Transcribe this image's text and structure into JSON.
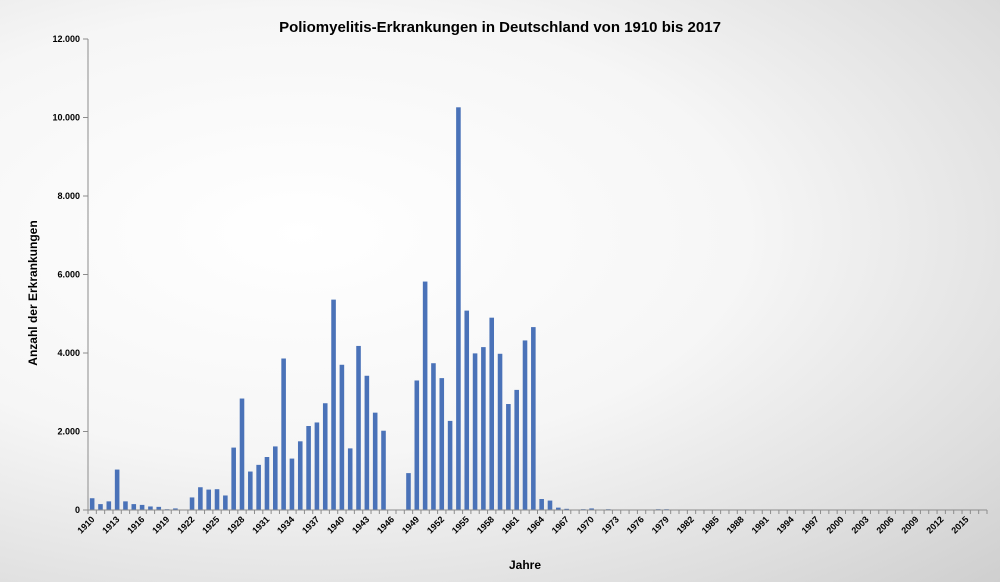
{
  "chart_data": {
    "type": "bar",
    "title": "Poliomyelitis-Erkrankungen in Deutschland von 1910 bis 2017",
    "xlabel": "Jahre",
    "ylabel": "Anzahl der Erkrankungen",
    "ylim": [
      0,
      12000
    ],
    "yticks": [
      {
        "value": 0,
        "label": "0"
      },
      {
        "value": 2000,
        "label": "2.000"
      },
      {
        "value": 4000,
        "label": "4.000"
      },
      {
        "value": 6000,
        "label": "6.000"
      },
      {
        "value": 8000,
        "label": "8.000"
      },
      {
        "value": 10000,
        "label": "10.000"
      },
      {
        "value": 12000,
        "label": "12.000"
      }
    ],
    "xticklabels": [
      "1910",
      "1913",
      "1916",
      "1919",
      "1922",
      "1925",
      "1928",
      "1931",
      "1934",
      "1937",
      "1940",
      "1943",
      "1946",
      "1949",
      "1952",
      "1955",
      "1958",
      "1961",
      "1964",
      "1967",
      "1970",
      "1973",
      "1976",
      "1979",
      "1982",
      "1985",
      "1988",
      "1991",
      "1994",
      "1997",
      "2000",
      "2003",
      "2006",
      "2009",
      "2012",
      "2015"
    ],
    "bar_color": "#4a72b8",
    "grid": false,
    "legend": "none",
    "categories": [
      "1910",
      "1911",
      "1912",
      "1913",
      "1914",
      "1915",
      "1916",
      "1917",
      "1918",
      "1919",
      "1920",
      "1921",
      "1922",
      "1923",
      "1924",
      "1925",
      "1926",
      "1927",
      "1928",
      "1929",
      "1930",
      "1931",
      "1932",
      "1933",
      "1934",
      "1935",
      "1936",
      "1937",
      "1938",
      "1939",
      "1940",
      "1941",
      "1942",
      "1943",
      "1944",
      "1945",
      "1946",
      "1947",
      "1948",
      "1949",
      "1950",
      "1951",
      "1952",
      "1953",
      "1954",
      "1955",
      "1956",
      "1957",
      "1958",
      "1959",
      "1960",
      "1961",
      "1962",
      "1963",
      "1964",
      "1965",
      "1966",
      "1967",
      "1968",
      "1969",
      "1970",
      "1971",
      "1972",
      "1973",
      "1974",
      "1975",
      "1976",
      "1977",
      "1978",
      "1979",
      "1980",
      "1981",
      "1982",
      "1983",
      "1984",
      "1985",
      "1986",
      "1987",
      "1988",
      "1989",
      "1990",
      "1991",
      "1992",
      "1993",
      "1994",
      "1995",
      "1996",
      "1997",
      "1998",
      "1999",
      "2000",
      "2001",
      "2002",
      "2003",
      "2004",
      "2005",
      "2006",
      "2007",
      "2008",
      "2009",
      "2010",
      "2011",
      "2012",
      "2013",
      "2014",
      "2015",
      "2016",
      "2017"
    ],
    "values": [
      300,
      150,
      220,
      1030,
      220,
      150,
      130,
      90,
      80,
      20,
      40,
      10,
      320,
      580,
      520,
      530,
      370,
      1590,
      2840,
      980,
      1150,
      1350,
      1620,
      3860,
      1310,
      1750,
      2140,
      2230,
      2720,
      5360,
      3700,
      1570,
      4180,
      3420,
      2480,
      2020,
      0,
      0,
      940,
      3300,
      5820,
      3740,
      3360,
      2270,
      10260,
      5080,
      3990,
      4150,
      4900,
      3980,
      2700,
      3060,
      4320,
      4660,
      280,
      240,
      60,
      30,
      10,
      20,
      40,
      5,
      20,
      5,
      5,
      10,
      10,
      5,
      20,
      20,
      5,
      5,
      5,
      5,
      5,
      5,
      5,
      5,
      5,
      5,
      5,
      0,
      0,
      0,
      0,
      0,
      0,
      0,
      0,
      0,
      0,
      0,
      0,
      0,
      0,
      0,
      0,
      0,
      0,
      0,
      0,
      0,
      0,
      0,
      0,
      0,
      0,
      0
    ]
  }
}
